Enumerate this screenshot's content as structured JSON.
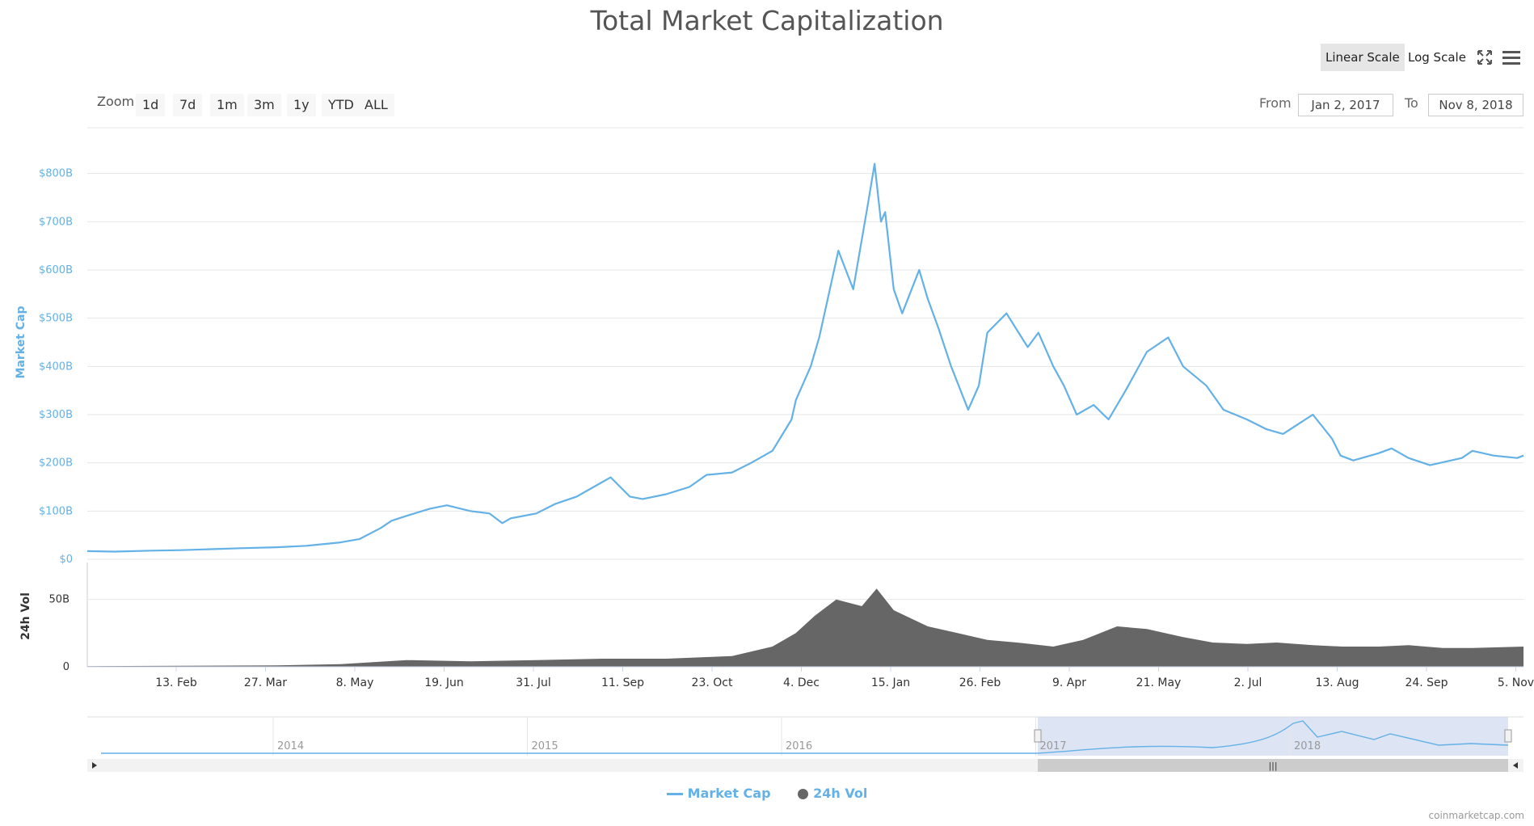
{
  "title": "Total Market Capitalization",
  "scale_buttons": {
    "linear": "Linear Scale",
    "log": "Log Scale",
    "active": "linear"
  },
  "zoom": {
    "label": "Zoom",
    "options": [
      "1d",
      "7d",
      "1m",
      "3m",
      "1y",
      "YTD",
      "ALL"
    ]
  },
  "range": {
    "from_label": "From",
    "from_value": "Jan 2, 2017",
    "to_label": "To",
    "to_value": "Nov 8, 2018"
  },
  "legend": {
    "market_cap": "Market Cap",
    "volume": "24h Vol"
  },
  "credit": "coinmarketcap.com",
  "colors": {
    "line": "#63b1e6",
    "volume": "#666666",
    "navigator_fill": "#cfd8ef"
  },
  "icons": {
    "fullscreen": "fullscreen-icon",
    "menu": "menu-icon"
  },
  "chart_data": [
    {
      "type": "line",
      "ylabel": "Market Cap",
      "yticks": [
        "$0",
        "$100B",
        "$200B",
        "$300B",
        "$400B",
        "$500B",
        "$600B",
        "$700B",
        "$800B"
      ],
      "ylim": [
        0,
        900
      ],
      "xticks": [
        "13. Feb",
        "27. Mar",
        "8. May",
        "19. Jun",
        "31. Jul",
        "11. Sep",
        "23. Oct",
        "4. Dec",
        "15. Jan",
        "26. Feb",
        "9. Apr",
        "21. May",
        "2. Jul",
        "13. Aug",
        "24. Sep",
        "5. Nov"
      ],
      "xlim": [
        "2017-01-02",
        "2018-11-08"
      ],
      "series": [
        {
          "name": "Market Cap",
          "x": [
            "2017-01-02",
            "2017-01-15",
            "2017-02-01",
            "2017-02-15",
            "2017-03-01",
            "2017-03-15",
            "2017-04-01",
            "2017-04-15",
            "2017-05-01",
            "2017-05-10",
            "2017-05-20",
            "2017-05-25",
            "2017-06-01",
            "2017-06-12",
            "2017-06-20",
            "2017-07-01",
            "2017-07-10",
            "2017-07-16",
            "2017-07-20",
            "2017-08-01",
            "2017-08-10",
            "2017-08-20",
            "2017-09-01",
            "2017-09-05",
            "2017-09-14",
            "2017-09-20",
            "2017-10-01",
            "2017-10-12",
            "2017-10-20",
            "2017-11-01",
            "2017-11-10",
            "2017-11-20",
            "2017-11-29",
            "2017-12-01",
            "2017-12-08",
            "2017-12-12",
            "2017-12-17",
            "2017-12-21",
            "2017-12-28",
            "2018-01-04",
            "2018-01-07",
            "2018-01-10",
            "2018-01-12",
            "2018-01-16",
            "2018-01-20",
            "2018-01-28",
            "2018-02-01",
            "2018-02-06",
            "2018-02-12",
            "2018-02-20",
            "2018-02-25",
            "2018-03-01",
            "2018-03-10",
            "2018-03-20",
            "2018-03-25",
            "2018-04-01",
            "2018-04-06",
            "2018-04-12",
            "2018-04-20",
            "2018-04-27",
            "2018-05-05",
            "2018-05-15",
            "2018-05-25",
            "2018-06-01",
            "2018-06-12",
            "2018-06-20",
            "2018-07-01",
            "2018-07-10",
            "2018-07-18",
            "2018-07-25",
            "2018-08-01",
            "2018-08-10",
            "2018-08-14",
            "2018-08-20",
            "2018-09-01",
            "2018-09-07",
            "2018-09-15",
            "2018-09-25",
            "2018-10-10",
            "2018-10-15",
            "2018-10-25",
            "2018-11-05",
            "2018-11-08"
          ],
          "values": [
            17,
            16,
            18,
            19,
            21,
            23,
            25,
            28,
            35,
            42,
            65,
            80,
            90,
            105,
            112,
            100,
            95,
            75,
            85,
            95,
            115,
            130,
            160,
            170,
            130,
            125,
            135,
            150,
            175,
            180,
            200,
            225,
            290,
            330,
            400,
            460,
            560,
            640,
            560,
            740,
            820,
            700,
            720,
            560,
            510,
            600,
            540,
            480,
            400,
            310,
            360,
            470,
            510,
            440,
            470,
            400,
            360,
            300,
            320,
            290,
            350,
            430,
            460,
            400,
            360,
            310,
            290,
            270,
            260,
            280,
            300,
            250,
            215,
            205,
            220,
            230,
            210,
            195,
            210,
            225,
            215,
            210,
            215
          ]
        }
      ]
    },
    {
      "type": "bar",
      "ylabel": "24h Vol",
      "yticks": [
        "0",
        "50B"
      ],
      "series": [
        {
          "name": "24h Vol",
          "x": [
            "2017-01-02",
            "2017-04-01",
            "2017-05-01",
            "2017-06-01",
            "2017-07-01",
            "2017-08-01",
            "2017-09-01",
            "2017-10-01",
            "2017-11-01",
            "2017-11-20",
            "2017-12-01",
            "2017-12-10",
            "2017-12-20",
            "2018-01-01",
            "2018-01-08",
            "2018-01-16",
            "2018-02-01",
            "2018-02-15",
            "2018-03-01",
            "2018-03-15",
            "2018-04-01",
            "2018-04-15",
            "2018-05-01",
            "2018-05-15",
            "2018-06-01",
            "2018-06-15",
            "2018-07-01",
            "2018-07-15",
            "2018-08-01",
            "2018-08-15",
            "2018-09-01",
            "2018-09-15",
            "2018-10-01",
            "2018-10-15",
            "2018-11-08"
          ],
          "values": [
            0.5,
            1,
            2,
            5,
            4,
            5,
            6,
            6,
            8,
            15,
            25,
            38,
            50,
            45,
            58,
            42,
            30,
            25,
            20,
            18,
            15,
            20,
            30,
            28,
            22,
            18,
            17,
            18,
            16,
            15,
            15,
            16,
            14,
            14,
            15
          ]
        }
      ]
    },
    {
      "type": "area",
      "name": "navigator",
      "xticks": [
        "2014",
        "2015",
        "2016",
        "2017",
        "2018"
      ],
      "selected_range": [
        "Jan 2, 2017",
        "Nov 8, 2018"
      ]
    }
  ]
}
